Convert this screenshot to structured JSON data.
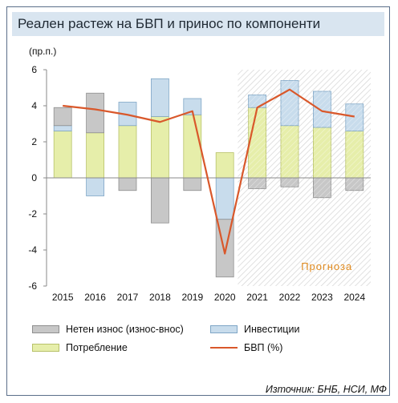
{
  "title": "Реален растеж на БВП и принос по компоненти",
  "source": "Източник: БНБ, НСИ, МФ",
  "chart_data": {
    "type": "bar",
    "stacked": true,
    "unit_label": "(пр.п.)",
    "categories": [
      "2015",
      "2016",
      "2017",
      "2018",
      "2019",
      "2020",
      "2021",
      "2022",
      "2023",
      "2024"
    ],
    "ylim": [
      -6,
      6
    ],
    "yticks": [
      -6,
      -4,
      -2,
      0,
      2,
      4,
      6
    ],
    "grid": false,
    "forecast_label": "Прогноза",
    "forecast_from": "2021",
    "series": [
      {
        "name": "Потребление",
        "type": "bar",
        "color": "#e6eeaa",
        "values": [
          2.6,
          2.5,
          2.9,
          3.4,
          3.5,
          0.0,
          3.9,
          2.9,
          2.8,
          2.6
        ]
      },
      {
        "name": "Инвестиции",
        "type": "bar",
        "color": "#c8dcec",
        "values": [
          0.3,
          -1.0,
          1.3,
          2.1,
          0.9,
          -2.3,
          0.7,
          2.5,
          2.0,
          1.5
        ]
      },
      {
        "name": "Нетен износ (износ-внос)",
        "type": "bar",
        "color": "#c7c7c7",
        "values": [
          1.0,
          2.2,
          -0.7,
          -2.5,
          -0.7,
          -3.2,
          -0.6,
          -0.5,
          -1.1,
          -0.7
        ]
      },
      {
        "name": "БВП (%)",
        "type": "line",
        "color": "#d9582b",
        "values": [
          4.0,
          3.8,
          3.5,
          3.1,
          3.7,
          -4.2,
          3.9,
          4.9,
          3.7,
          3.4
        ]
      }
    ],
    "extra_bars": {
      "2020": {
        "Потребление": 1.4
      }
    },
    "legend": [
      {
        "label": "Нетен износ (износ-внос)",
        "kind": "box",
        "color": "#c7c7c7"
      },
      {
        "label": "Инвестиции",
        "kind": "box",
        "color": "#c8dcec"
      },
      {
        "label": "Потребление",
        "kind": "box",
        "color": "#e6eeaa"
      },
      {
        "label": "БВП (%)",
        "kind": "line",
        "color": "#d9582b"
      }
    ]
  }
}
